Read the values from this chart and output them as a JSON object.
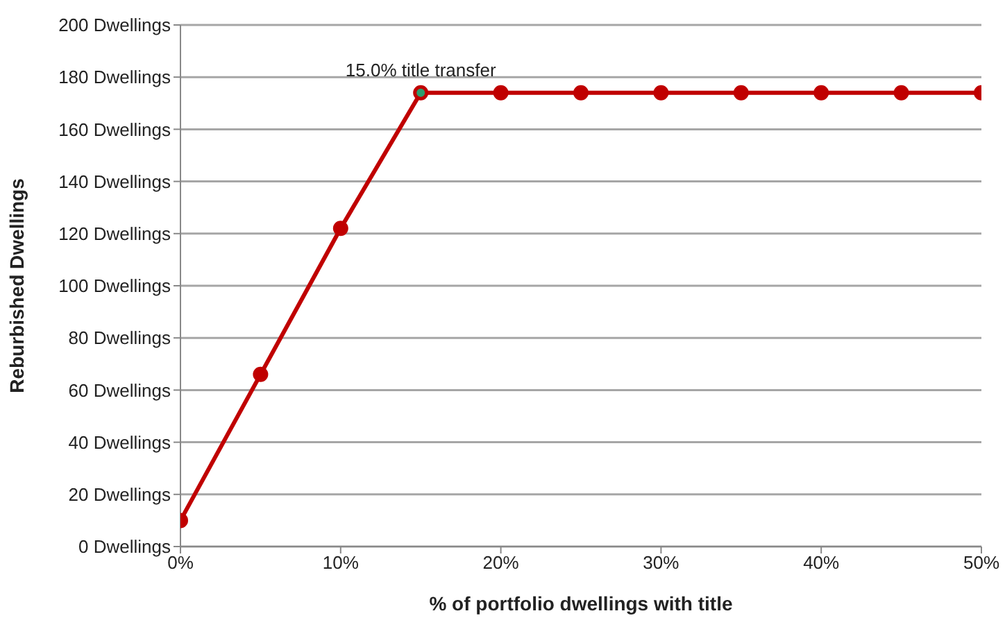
{
  "chart_data": {
    "type": "line",
    "xlabel": "% of portfolio dwellings with title",
    "ylabel": "Reburbished  Dwellings",
    "x": [
      0,
      5,
      10,
      15,
      20,
      25,
      30,
      35,
      40,
      45,
      50
    ],
    "series": [
      {
        "color": "#c00000",
        "values": [
          10,
          66,
          122,
          174,
          174,
          174,
          174,
          174,
          174,
          174,
          174
        ]
      },
      {
        "type": "scatter",
        "color": "#2e9e6e",
        "x": [
          15
        ],
        "values": [
          174
        ]
      }
    ],
    "xlim": [
      0,
      50
    ],
    "xticks": [
      {
        "value": 0,
        "label": "0%"
      },
      {
        "value": 10,
        "label": "10%"
      },
      {
        "value": 20,
        "label": "20%"
      },
      {
        "value": 30,
        "label": "30%"
      },
      {
        "value": 40,
        "label": "40%"
      },
      {
        "value": 50,
        "label": "50%"
      }
    ],
    "ylim": [
      0,
      200
    ],
    "yticks": [
      {
        "value": 0,
        "label": "0 Dwellings"
      },
      {
        "value": 20,
        "label": "20 Dwellings"
      },
      {
        "value": 40,
        "label": "40 Dwellings"
      },
      {
        "value": 60,
        "label": "60 Dwellings"
      },
      {
        "value": 80,
        "label": "80 Dwellings"
      },
      {
        "value": 100,
        "label": "100 Dwellings"
      },
      {
        "value": 120,
        "label": "120 Dwellings"
      },
      {
        "value": 140,
        "label": "140 Dwellings"
      },
      {
        "value": 160,
        "label": "160 Dwellings"
      },
      {
        "value": 180,
        "label": "180 Dwellings"
      },
      {
        "value": 200,
        "label": "200 Dwellings"
      }
    ],
    "grid": "y",
    "marker": "circle",
    "line_style": "solid",
    "legend": false,
    "annotations": [
      {
        "text": "15.0% title transfer",
        "x": 15,
        "y": 174
      }
    ]
  }
}
